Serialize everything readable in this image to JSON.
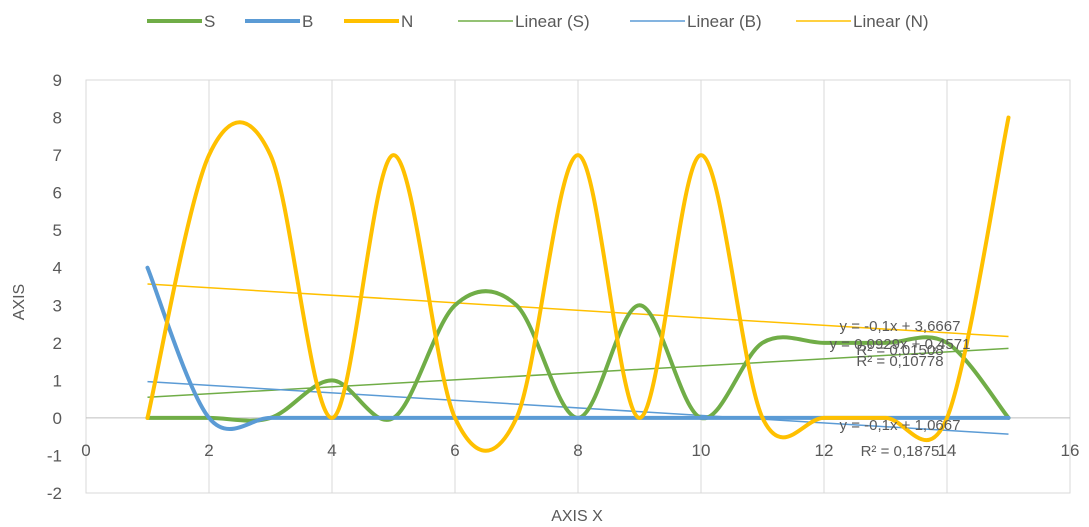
{
  "chart_data": {
    "type": "line",
    "title": "",
    "xlabel": "AXIS X",
    "ylabel": "AXIS",
    "xlim": [
      0,
      16
    ],
    "ylim": [
      -2,
      9
    ],
    "x_ticks": [
      0,
      2,
      4,
      6,
      8,
      10,
      12,
      14,
      16
    ],
    "y_ticks": [
      -2,
      -1,
      0,
      1,
      2,
      3,
      4,
      5,
      6,
      7,
      8,
      9
    ],
    "grid": "vertical",
    "legend_position": "top",
    "x": [
      1,
      2,
      3,
      4,
      5,
      6,
      7,
      8,
      9,
      10,
      11,
      12,
      13,
      14,
      15
    ],
    "series": [
      {
        "name": "S",
        "color": "#70AD47",
        "values": [
          0,
          0,
          0,
          1,
          0,
          3,
          3,
          0,
          3,
          0,
          2,
          2,
          2,
          2,
          0
        ]
      },
      {
        "name": "B",
        "color": "#5B9BD5",
        "values": [
          4,
          0,
          0,
          0,
          0,
          0,
          0,
          0,
          0,
          0,
          0,
          0,
          0,
          0,
          0
        ]
      },
      {
        "name": "N",
        "color": "#FFC000",
        "values": [
          0,
          7,
          7,
          0,
          7,
          0,
          0,
          7,
          0,
          7,
          0,
          0,
          0,
          0,
          8
        ]
      }
    ],
    "trendlines": [
      {
        "name": "Linear (S)",
        "color": "#70AD47",
        "slope": 0.0929,
        "intercept": 0.4571,
        "equation": "y = 0,0929x + 0,4571",
        "r2": "R² = 0,10778"
      },
      {
        "name": "Linear (B)",
        "color": "#5B9BD5",
        "slope": -0.1,
        "intercept": 1.0667,
        "equation": "y = -0,1x + 1,0667",
        "r2": "R² = 0,1875"
      },
      {
        "name": "Linear (N)",
        "color": "#FFC000",
        "slope": -0.1,
        "intercept": 3.6667,
        "equation": "y = -0,1x + 3,6667",
        "r2": "R² = 0,01508"
      }
    ]
  }
}
